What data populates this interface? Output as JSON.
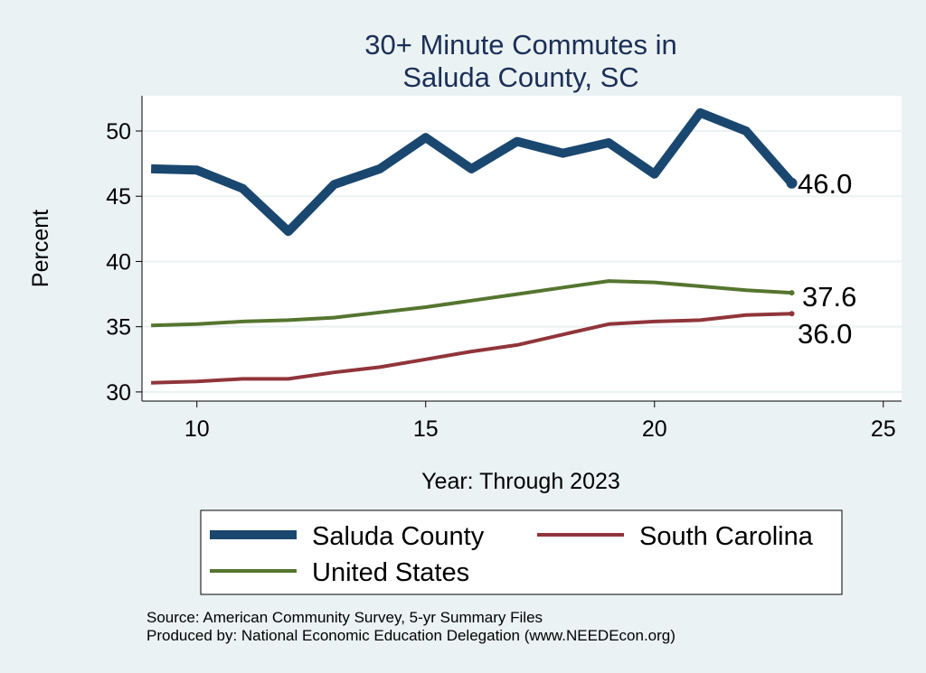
{
  "chart_data": {
    "type": "line",
    "title_lines": [
      "30+ Minute Commutes in",
      "Saluda County, SC"
    ],
    "xlabel": "Year: Through 2023",
    "ylabel": "Percent",
    "xlim": [
      8.8,
      25.4
    ],
    "ylim": [
      29.3,
      52.7
    ],
    "xticks": [
      10,
      15,
      20,
      25
    ],
    "yticks": [
      30,
      35,
      40,
      45,
      50
    ],
    "grid": true,
    "legend_position": "bottom",
    "series": [
      {
        "name": "Saluda County",
        "color": "#1a476f",
        "width": 10,
        "x": [
          9,
          10,
          11,
          12,
          13,
          14,
          15,
          16,
          17,
          18,
          19,
          20,
          21,
          22,
          23
        ],
        "values": [
          47.1,
          47.0,
          45.6,
          42.3,
          45.9,
          47.1,
          49.5,
          47.1,
          49.2,
          48.3,
          49.1,
          46.7,
          51.4,
          50.0,
          46.0
        ],
        "end_label": "46.0"
      },
      {
        "name": "South Carolina",
        "color": "#90353b",
        "width": 4,
        "x": [
          9,
          10,
          11,
          12,
          13,
          14,
          15,
          16,
          17,
          18,
          19,
          20,
          21,
          22,
          23
        ],
        "values": [
          30.7,
          30.8,
          31.0,
          31.0,
          31.5,
          31.9,
          32.5,
          33.1,
          33.6,
          34.4,
          35.2,
          35.4,
          35.5,
          35.9,
          36.0
        ],
        "end_label": "36.0"
      },
      {
        "name": "United States",
        "color": "#55752f",
        "width": 4,
        "x": [
          9,
          10,
          11,
          12,
          13,
          14,
          15,
          16,
          17,
          18,
          19,
          20,
          21,
          22,
          23
        ],
        "values": [
          35.1,
          35.2,
          35.4,
          35.5,
          35.7,
          36.1,
          36.5,
          37.0,
          37.5,
          38.0,
          38.5,
          38.4,
          38.1,
          37.8,
          37.6
        ],
        "end_label": "37.6"
      }
    ]
  },
  "footer": {
    "source": "Source: American Community Survey, 5-yr Summary Files",
    "produced": "Produced by: National Economic Education Delegation (www.NEEDEcon.org)"
  }
}
